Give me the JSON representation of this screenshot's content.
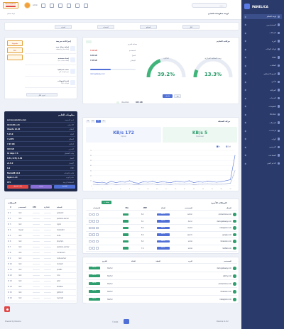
{
  "brand": {
    "name": "PANELICA",
    "tagline": "Server Management"
  },
  "topbar": {
    "search_placeholder": "بحث...",
    "breadcrumb": "لوحة التحكم",
    "left_badge": "PanelicaFlow",
    "user": "admin"
  },
  "sidebar": {
    "items": [
      {
        "label": "لوحة التحكم"
      },
      {
        "label": "المستخدمين"
      },
      {
        "label": "المجالات"
      },
      {
        "label": "البريد"
      },
      {
        "label": "قواعد البيانات"
      },
      {
        "label": "DNS"
      },
      {
        "label": "الملفات"
      },
      {
        "label": "النسخ الاحتياطي"
      },
      {
        "label": "الأمان"
      },
      {
        "label": "المراقبة"
      },
      {
        "label": "الخدمات"
      },
      {
        "label": "التطبيقات"
      },
      {
        "label": "Docker"
      },
      {
        "label": "السجلات"
      },
      {
        "label": "الإعدادات"
      },
      {
        "label": "أدوات"
      },
      {
        "label": "الترخيص"
      },
      {
        "label": "المساعدة"
      },
      {
        "label": "الدعم الفني"
      }
    ]
  },
  "page": {
    "title": "لوحة معلومات الخادم"
  },
  "filters": [
    {
      "label": "الكل"
    },
    {
      "label": "المواقع"
    },
    {
      "label": "الخدمات"
    },
    {
      "label": "الموارد"
    }
  ],
  "gauges": {
    "title": "مراقب الخادم",
    "cpu": {
      "label": "وحدة المعالجة المركزية",
      "value": "13.3%",
      "percent": 13.3
    },
    "ram": {
      "label": "الذاكرة",
      "value": "39.2%",
      "percent": 39.2
    },
    "details": [
      {
        "k": "المستخدم",
        "v": "3.12 GB"
      },
      {
        "k": "المتاح",
        "v": "4.81 GB"
      },
      {
        "k": "الإجمالي",
        "v": "7.93 GB"
      }
    ],
    "button": "تفاصيل"
  },
  "disk": {
    "title": "مساحة القرص",
    "path": "/dev/sda1",
    "used": "48.5 GB",
    "free": "Available",
    "link": "demogateway.com"
  },
  "network": {
    "title": "حركة الشبكة",
    "tabs": [
      "1h",
      "6h",
      "24h",
      "7d"
    ],
    "download": {
      "value": "KB/s 5",
      "label": "Download"
    },
    "upload": {
      "value": "KB/s 172",
      "label": "Upload"
    },
    "legend": [
      "In",
      "Out"
    ]
  },
  "chart_data": {
    "type": "line",
    "x": [
      1,
      2,
      3,
      4,
      5,
      6,
      7,
      8,
      9,
      10,
      11,
      12,
      13,
      14,
      15,
      16,
      17,
      18,
      19,
      20,
      21,
      22,
      23,
      24,
      25,
      26,
      27,
      28,
      29,
      30,
      31,
      32
    ],
    "series": [
      {
        "name": "In",
        "values": [
          8,
          6,
          7,
          5,
          9,
          6,
          8,
          7,
          10,
          6,
          5,
          8,
          7,
          9,
          6,
          8,
          7,
          6,
          9,
          8,
          7,
          10,
          6,
          8,
          7,
          9,
          8,
          7,
          8,
          10,
          12,
          60
        ]
      },
      {
        "name": "Out",
        "values": [
          3,
          2,
          3,
          2,
          4,
          2,
          3,
          3,
          4,
          2,
          2,
          3,
          3,
          4,
          2,
          3,
          3,
          2,
          4,
          3,
          3,
          4,
          2,
          3,
          3,
          4,
          3,
          3,
          3,
          4,
          5,
          30
        ]
      }
    ],
    "ylim": [
      0,
      70
    ],
    "grid": true,
    "legend": "top-right"
  },
  "quick": {
    "title": "إجراءات سريعة",
    "items": [
      {
        "title": "إضافة مجال جديد",
        "sub": "إنشاء مجال واستضافة"
      },
      {
        "title": "إنشاء مستخدم",
        "sub": "إضافة حساب جديد"
      },
      {
        "title": "نسخة احتياطية",
        "sub": "نسخ البيانات الآن"
      },
      {
        "title": "إدارة الشهادات",
        "sub": "SSL شهادات"
      }
    ],
    "button": "عرض الكل"
  },
  "promo": {
    "title": "Upgrade",
    "sub": "PRO"
  },
  "server": {
    "title": "معلومات الخادم",
    "rows": [
      {
        "k": "اسم المضيف",
        "v": "server.panelica.com"
      },
      {
        "k": "عنوان IP",
        "v": "192.168.1.24"
      },
      {
        "k": "النظام",
        "v": "Ubuntu 22.04"
      },
      {
        "k": "النواة",
        "v": "5.15.0"
      },
      {
        "k": "المعالج",
        "v": "4 vCPU"
      },
      {
        "k": "الذاكرة",
        "v": "7.93 GB"
      },
      {
        "k": "التخزين",
        "v": "100 GB"
      },
      {
        "k": "وقت التشغيل",
        "v": "12 days 4 h"
      },
      {
        "k": "الحمل",
        "v": "0.41, 0.35, 0.30"
      },
      {
        "k": "الإصدار",
        "v": "v1.8.2"
      },
      {
        "k": "PHP",
        "v": "8.2"
      },
      {
        "k": "قاعدة البيانات",
        "v": "MariaDB 10.6"
      },
      {
        "k": "خادم الويب",
        "v": "Nginx 1.24"
      },
      {
        "k": "المنطقة الزمنية",
        "v": "UTC"
      }
    ],
    "buttons": [
      "إعادة التشغيل",
      "تحديث",
      "التفاصيل"
    ]
  },
  "domains": {
    "title": "المجالات الأخيرة",
    "add": "+ إضافة",
    "headers": [
      "المجال",
      "المستخدم",
      "الحالة",
      "PHP",
      "SSL",
      "الإجراءات"
    ],
    "rows": [
      {
        "domain": "productions.com",
        "user": "admin",
        "status": "Active",
        "php": "8.2"
      },
      {
        "domain": "demogateway.com",
        "user": "demo",
        "status": "Active",
        "php": "8.1"
      },
      {
        "domain": "instagram.com",
        "user": "media",
        "status": "Active",
        "php": "8.2"
      },
      {
        "domain": "google.com",
        "user": "search",
        "status": "Active",
        "php": "8.0"
      },
      {
        "domain": "facebook.com",
        "user": "social",
        "status": "Active",
        "php": "8.2"
      },
      {
        "domain": "twitter.com",
        "user": "social",
        "status": "Active",
        "php": "7.4"
      }
    ]
  },
  "users": {
    "title": "المستخدمين الأخيرين",
    "headers": [
      "المستخدم",
      "البريد",
      "الخطة",
      "الحالة",
      "التاريخ"
    ],
    "rows": [
      {
        "name": "demogateway.com",
        "plan": "Starter",
        "status": "Active"
      },
      {
        "name": "uatmy.com",
        "plan": "Starter",
        "status": "Active"
      },
      {
        "name": "productions.com",
        "plan": "Starter",
        "status": "Active"
      },
      {
        "name": "facebook.com",
        "plan": "Starter",
        "status": "Active"
      },
      {
        "name": "instagram.com",
        "plan": "Starter",
        "status": "Active"
      }
    ]
  },
  "processes": {
    "title": "العمليات",
    "headers": [
      "#",
      "المستخدم",
      "CPU",
      "الذاكرة",
      "العملية"
    ],
    "rows": [
      {
        "n": "1",
        "user": "root",
        "proc": "systemd"
      },
      {
        "n": "2",
        "user": "root",
        "proc": "panelica-server"
      },
      {
        "n": "3",
        "user": "root",
        "proc": "nginx"
      },
      {
        "n": "4",
        "user": "mysql",
        "proc": "mariadbd"
      },
      {
        "n": "5",
        "user": "root",
        "proc": "redis"
      },
      {
        "n": "6",
        "user": "root",
        "proc": "php-fpm"
      },
      {
        "n": "7",
        "user": "root",
        "proc": "panelica-worker"
      },
      {
        "n": "8",
        "user": "root",
        "proc": "containerd"
      },
      {
        "n": "9",
        "user": "root",
        "proc": "node-server"
      },
      {
        "n": "10",
        "user": "root",
        "proc": "dockerd"
      },
      {
        "n": "11",
        "user": "root",
        "proc": "postfix"
      },
      {
        "n": "12",
        "user": "root",
        "proc": "cron"
      },
      {
        "n": "13",
        "user": "root",
        "proc": "sshd"
      },
      {
        "n": "14",
        "user": "root",
        "proc": "fail2ban"
      },
      {
        "n": "15",
        "user": "root",
        "proc": "python3"
      },
      {
        "n": "16",
        "user": "root",
        "proc": "rsyslogd"
      }
    ]
  },
  "footer": {
    "left": "Powered by Panelica",
    "right": "Panelica v1.8.2",
    "center": "© 2024"
  },
  "colors": {
    "primary": "#4f6fd6",
    "green": "#2f9e6e",
    "sidebar": "#2a3a6b",
    "red": "#e04848"
  }
}
